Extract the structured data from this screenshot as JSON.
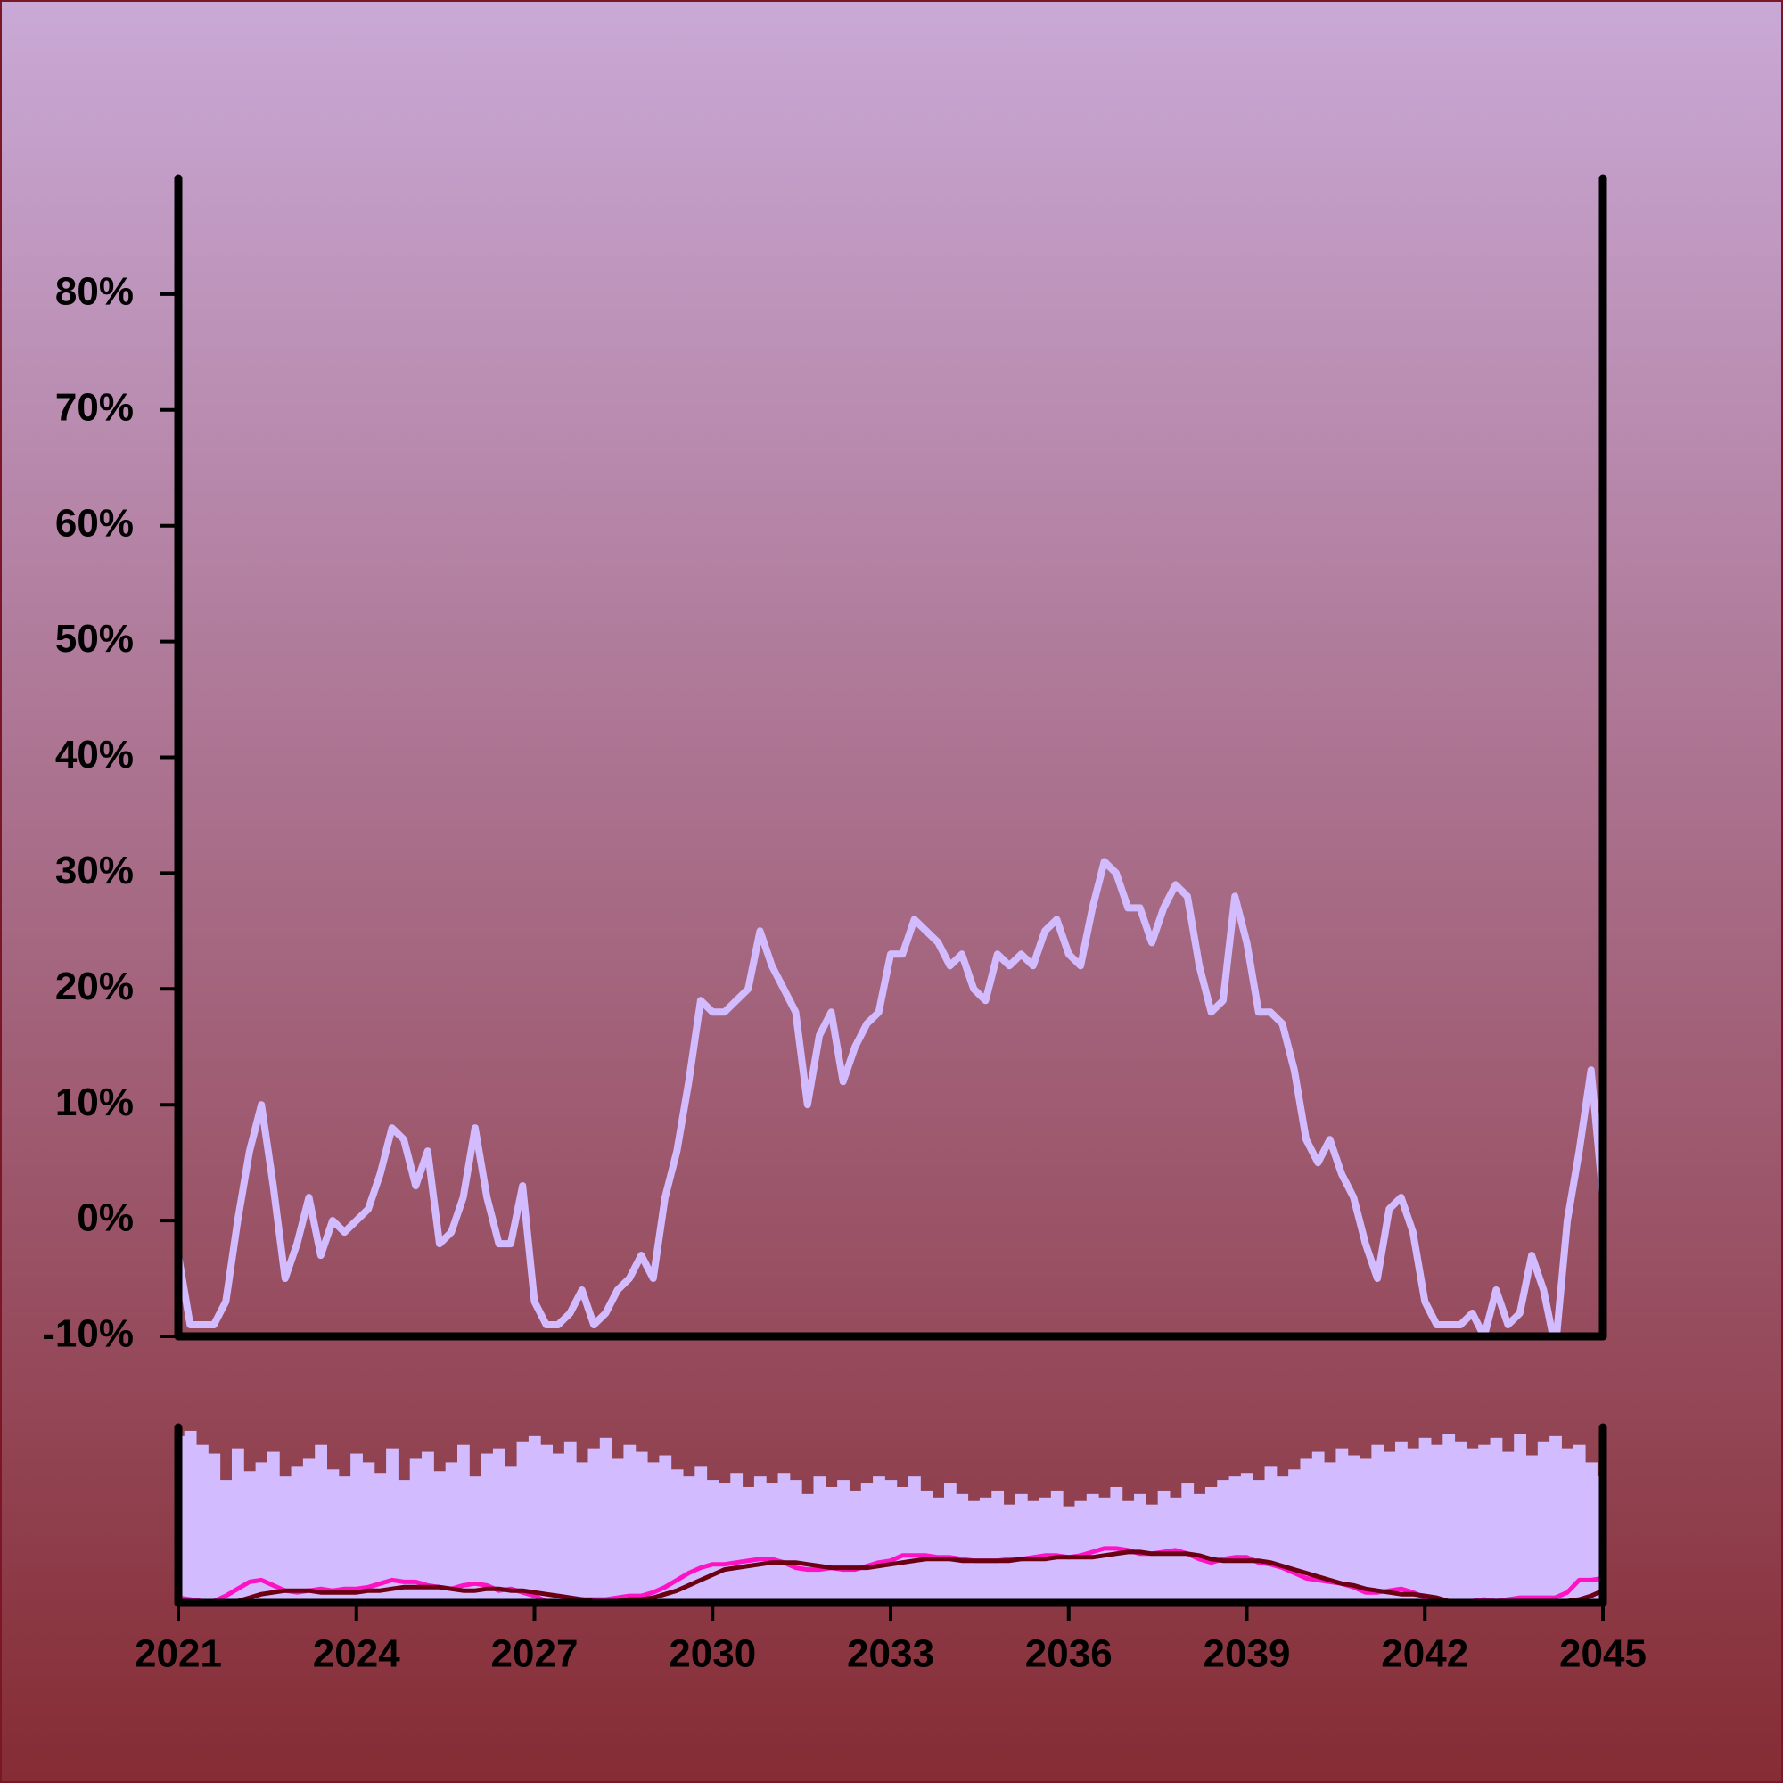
{
  "chart_data": [
    {
      "type": "line",
      "color": "#d2bcff",
      "x": [
        2021,
        2021.2,
        2021.4,
        2021.6,
        2021.8,
        2022,
        2022.2,
        2022.4,
        2022.6,
        2022.8,
        2023,
        2023.2,
        2023.4,
        2023.6,
        2023.8,
        2024,
        2024.2,
        2024.4,
        2024.6,
        2024.8,
        2025,
        2025.2,
        2025.4,
        2025.6,
        2025.8,
        2026,
        2026.2,
        2026.4,
        2026.6,
        2026.8,
        2027,
        2027.2,
        2027.4,
        2027.6,
        2027.8,
        2028,
        2028.2,
        2028.4,
        2028.6,
        2028.8,
        2029,
        2029.2,
        2029.4,
        2029.6,
        2029.8,
        2030,
        2030.2,
        2030.4,
        2030.6,
        2030.8,
        2031,
        2031.2,
        2031.4,
        2031.6,
        2031.8,
        2032,
        2032.2,
        2032.4,
        2032.6,
        2032.8,
        2033,
        2033.2,
        2033.4,
        2033.6,
        2033.8,
        2034,
        2034.2,
        2034.4,
        2034.6,
        2034.8,
        2035,
        2035.2,
        2035.4,
        2035.6,
        2035.8,
        2036,
        2036.2,
        2036.4,
        2036.6,
        2036.8,
        2037,
        2037.2,
        2037.4,
        2037.6,
        2037.8,
        2038,
        2038.2,
        2038.4,
        2038.6,
        2038.8,
        2039,
        2039.2,
        2039.4,
        2039.6,
        2039.8,
        2040,
        2040.2,
        2040.4,
        2040.6,
        2040.8,
        2041,
        2041.2,
        2041.4,
        2041.6,
        2041.8,
        2042,
        2042.2,
        2042.4,
        2042.6,
        2042.8,
        2043,
        2043.2,
        2043.4,
        2043.6,
        2043.8,
        2044,
        2044.2,
        2044.4,
        2044.6,
        2044.8,
        2045
      ],
      "values": [
        -3,
        -9,
        -9,
        -9,
        -7,
        0,
        6,
        10,
        3,
        -5,
        -2,
        2,
        -3,
        0,
        -1,
        0,
        1,
        4,
        8,
        7,
        3,
        6,
        -2,
        -1,
        2,
        8,
        2,
        -2,
        -2,
        3,
        -7,
        -9,
        -9,
        -8,
        -6,
        -9,
        -8,
        -6,
        -5,
        -3,
        -5,
        2,
        6,
        12,
        19,
        18,
        18,
        19,
        20,
        25,
        22,
        20,
        18,
        10,
        16,
        18,
        12,
        15,
        17,
        18,
        23,
        23,
        26,
        25,
        24,
        22,
        23,
        20,
        19,
        23,
        22,
        23,
        22,
        25,
        26,
        23,
        22,
        27,
        31,
        30,
        27,
        27,
        24,
        27,
        29,
        28,
        22,
        18,
        19,
        28,
        24,
        18,
        18,
        17,
        13,
        7,
        5,
        7,
        4,
        2,
        -2,
        -5,
        1,
        2,
        -1,
        -7,
        -9,
        -9,
        -9,
        -8,
        -10,
        -6,
        -9,
        -8,
        -3,
        -6,
        -11,
        0,
        6,
        13,
        2
      ],
      "xlim": [
        2021,
        2045
      ],
      "ylim": [
        -10,
        90
      ],
      "yticks": [
        {
          "value": -10,
          "label": "-10%"
        },
        {
          "value": 0,
          "label": "0%"
        },
        {
          "value": 10,
          "label": "10%"
        },
        {
          "value": 20,
          "label": "20%"
        },
        {
          "value": 30,
          "label": "30%"
        },
        {
          "value": 40,
          "label": "40%"
        },
        {
          "value": 50,
          "label": "50%"
        },
        {
          "value": 60,
          "label": "60%"
        },
        {
          "value": 70,
          "label": "70%"
        },
        {
          "value": 80,
          "label": "80%"
        }
      ]
    },
    {
      "type": "bar",
      "color": "#d2bcff",
      "values": [
        95,
        98,
        90,
        85,
        70,
        88,
        75,
        80,
        86,
        72,
        78,
        82,
        90,
        76,
        72,
        85,
        80,
        74,
        88,
        70,
        82,
        86,
        75,
        80,
        90,
        72,
        85,
        88,
        78,
        92,
        95,
        90,
        85,
        92,
        80,
        88,
        94,
        82,
        90,
        86,
        80,
        84,
        76,
        72,
        78,
        70,
        68,
        74,
        66,
        72,
        68,
        74,
        70,
        62,
        72,
        66,
        70,
        64,
        68,
        72,
        70,
        66,
        72,
        64,
        60,
        68,
        62,
        58,
        60,
        64,
        56,
        62,
        58,
        60,
        64,
        55,
        58,
        62,
        60,
        66,
        58,
        62,
        56,
        64,
        60,
        68,
        62,
        66,
        70,
        72,
        74,
        70,
        78,
        72,
        76,
        82,
        86,
        80,
        88,
        84,
        82,
        90,
        86,
        92,
        88,
        94,
        90,
        96,
        92,
        88,
        90,
        94,
        86,
        96,
        84,
        92,
        95,
        88,
        90,
        80,
        72
      ],
      "lines": [
        {
          "color": "#ff12c4",
          "values": [
            3,
            2,
            1,
            1,
            4,
            8,
            12,
            13,
            10,
            7,
            6,
            7,
            8,
            7,
            8,
            8,
            9,
            11,
            13,
            12,
            12,
            10,
            9,
            8,
            10,
            11,
            10,
            7,
            8,
            6,
            4,
            1,
            1,
            2,
            2,
            2,
            2,
            3,
            4,
            4,
            6,
            9,
            13,
            17,
            20,
            22,
            22,
            23,
            24,
            25,
            25,
            23,
            20,
            19,
            19,
            20,
            19,
            19,
            21,
            23,
            24,
            27,
            27,
            27,
            26,
            26,
            25,
            24,
            24,
            24,
            25,
            25,
            26,
            27,
            27,
            26,
            27,
            29,
            31,
            31,
            30,
            28,
            28,
            29,
            30,
            28,
            25,
            23,
            25,
            26,
            26,
            23,
            22,
            20,
            17,
            14,
            13,
            12,
            11,
            9,
            6,
            6,
            7,
            8,
            6,
            3,
            1,
            1,
            1,
            1,
            2,
            1,
            2,
            3,
            3,
            3,
            3,
            6,
            13,
            13,
            14
          ]
        },
        {
          "color": "#6a0012",
          "values": [
            1,
            1,
            0,
            0,
            0,
            1,
            3,
            5,
            6,
            7,
            7,
            7,
            6,
            6,
            6,
            6,
            7,
            7,
            8,
            9,
            9,
            9,
            9,
            8,
            7,
            7,
            8,
            8,
            7,
            7,
            6,
            5,
            4,
            3,
            2,
            1,
            1,
            1,
            2,
            2,
            3,
            5,
            7,
            10,
            13,
            16,
            19,
            20,
            21,
            22,
            23,
            23,
            23,
            22,
            21,
            20,
            20,
            20,
            20,
            21,
            22,
            23,
            24,
            25,
            25,
            25,
            24,
            24,
            24,
            24,
            24,
            25,
            25,
            25,
            26,
            26,
            26,
            26,
            27,
            28,
            29,
            29,
            28,
            28,
            28,
            28,
            27,
            25,
            24,
            24,
            24,
            24,
            23,
            21,
            19,
            17,
            15,
            13,
            11,
            10,
            8,
            7,
            6,
            5,
            5,
            4,
            3,
            1,
            0,
            0,
            0,
            0,
            0,
            0,
            0,
            0,
            0,
            1,
            2,
            4,
            7
          ]
        }
      ],
      "xlim": [
        2021,
        2045
      ],
      "ylim": [
        0,
        100
      ],
      "xticks": [
        2021,
        2024,
        2027,
        2030,
        2033,
        2036,
        2039,
        2042,
        2045
      ]
    }
  ]
}
